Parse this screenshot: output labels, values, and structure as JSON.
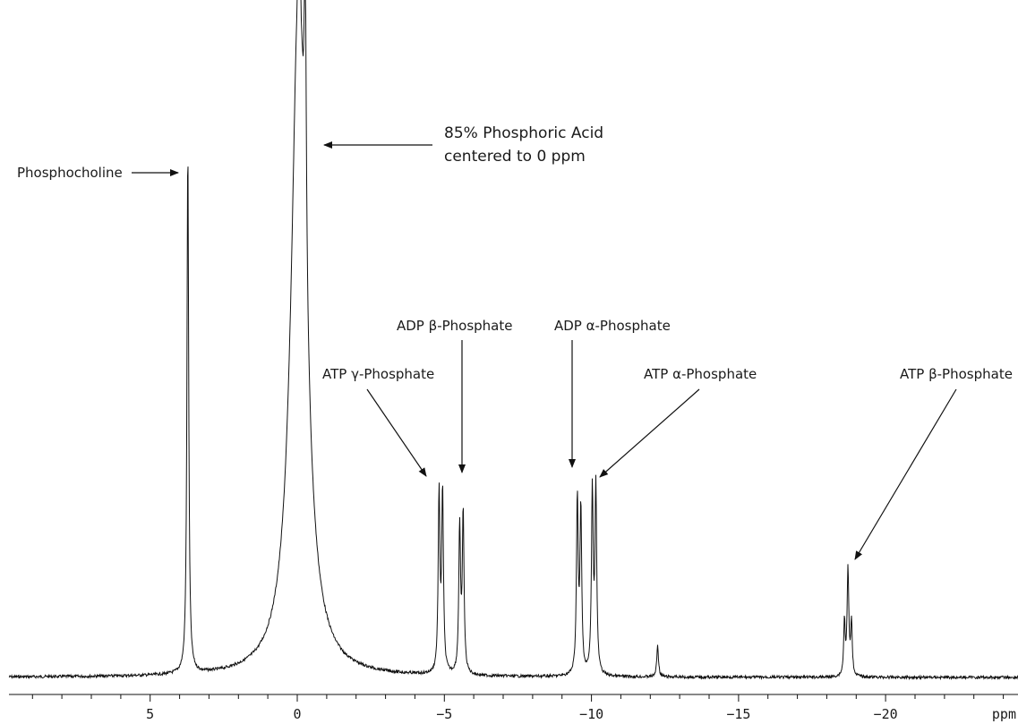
{
  "chart_data": {
    "type": "line",
    "title": "",
    "xlabel": "ppm",
    "ylabel": "",
    "x_reversed": true,
    "xlim": [
      9.8,
      -24.5
    ],
    "ylim": [
      0,
      1
    ],
    "grid": false,
    "legend": "none",
    "xticks": [
      5,
      0,
      -5,
      -10,
      -15,
      -20
    ],
    "tick_labels": [
      "5",
      "0",
      "−5",
      "−10",
      "−15",
      "−20"
    ],
    "series": [
      {
        "peaks": [
          {
            "ppm": 3.72,
            "height": 0.88,
            "width": 0.035
          },
          {
            "ppm": -0.05,
            "height": 1.15,
            "width": 0.3
          },
          {
            "ppm": -0.27,
            "height": 0.5,
            "width": 0.04
          },
          {
            "ppm": -4.82,
            "height": 0.297,
            "width": 0.035
          },
          {
            "ppm": -4.94,
            "height": 0.3,
            "width": 0.035
          },
          {
            "ppm": -5.52,
            "height": 0.244,
            "width": 0.035
          },
          {
            "ppm": -5.64,
            "height": 0.267,
            "width": 0.035
          },
          {
            "ppm": -9.52,
            "height": 0.294,
            "width": 0.035
          },
          {
            "ppm": -9.64,
            "height": 0.274,
            "width": 0.035
          },
          {
            "ppm": -10.03,
            "height": 0.306,
            "width": 0.035
          },
          {
            "ppm": -10.15,
            "height": 0.311,
            "width": 0.035
          },
          {
            "ppm": -12.25,
            "height": 0.053,
            "width": 0.035
          },
          {
            "ppm": -18.6,
            "height": 0.09,
            "width": 0.03
          },
          {
            "ppm": -18.72,
            "height": 0.178,
            "width": 0.035
          },
          {
            "ppm": -18.84,
            "height": 0.09,
            "width": 0.03
          }
        ]
      }
    ],
    "annotations": [
      {
        "id": "phosphocholine",
        "lines": [
          "Phosphocholine"
        ],
        "ppm": 3.72
      },
      {
        "id": "phosphoric-acid",
        "lines": [
          "85% Phosphoric Acid",
          "centered to 0 ppm"
        ],
        "ppm": -0.05
      },
      {
        "id": "atp-gamma",
        "lines": [
          "ATP γ-Phosphate"
        ],
        "ppm": -4.88
      },
      {
        "id": "adp-beta",
        "lines": [
          "ADP β-Phosphate"
        ],
        "ppm": -5.58
      },
      {
        "id": "adp-alpha",
        "lines": [
          "ADP α-Phosphate"
        ],
        "ppm": -9.58
      },
      {
        "id": "atp-alpha",
        "lines": [
          "ATP α-Phosphate"
        ],
        "ppm": -10.09
      },
      {
        "id": "atp-beta",
        "lines": [
          "ATP β-Phosphate"
        ],
        "ppm": -18.72
      }
    ]
  },
  "colors": {
    "trace": "#111111",
    "axis": "#111111",
    "text": "#1a1a1a"
  }
}
